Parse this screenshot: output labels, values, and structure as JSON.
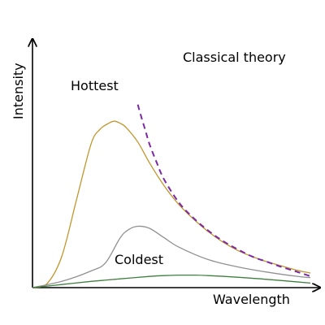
{
  "chart_data": {
    "type": "line",
    "title": "",
    "xlabel": "Wavelength",
    "ylabel": "Intensity",
    "xlim": [
      0,
      10
    ],
    "ylim": [
      0,
      10
    ],
    "grid": false,
    "legend": "none",
    "annotations": [
      "Classical theory",
      "Hottest",
      "Coldest"
    ],
    "series": [
      {
        "name": "Hottest",
        "color": "#c0962d",
        "style": "solid",
        "x": [
          0,
          0.5,
          1.0,
          1.5,
          2.0,
          2.3,
          2.6,
          2.8,
          3.0,
          3.2,
          3.6,
          4.0,
          4.5,
          5.0,
          5.5,
          6.0,
          6.5,
          7.0,
          7.5,
          8.0,
          8.5,
          9.0,
          9.5
        ],
        "y": [
          0,
          0.2,
          1.5,
          4.2,
          6.9,
          7.6,
          7.9,
          8.0,
          7.9,
          7.7,
          7.0,
          6.0,
          4.9,
          4.0,
          3.3,
          2.7,
          2.2,
          1.8,
          1.5,
          1.25,
          1.05,
          0.85,
          0.7
        ]
      },
      {
        "name": "",
        "color": "#919191",
        "style": "solid",
        "x": [
          0,
          1.0,
          2.0,
          2.5,
          3.0,
          3.3,
          3.6,
          4.0,
          4.5,
          5.0,
          6.0,
          7.0,
          8.0,
          9.0,
          9.5
        ],
        "y": [
          0,
          0.3,
          0.8,
          1.2,
          2.4,
          2.8,
          2.95,
          2.85,
          2.4,
          1.95,
          1.35,
          1.0,
          0.75,
          0.55,
          0.48
        ]
      },
      {
        "name": "Coldest",
        "color": "#3f7f3f",
        "style": "solid",
        "x": [
          0,
          1.0,
          2.0,
          3.0,
          4.0,
          4.5,
          5.0,
          5.5,
          6.0,
          7.0,
          8.0,
          9.0,
          9.5
        ],
        "y": [
          0,
          0.15,
          0.3,
          0.42,
          0.54,
          0.58,
          0.6,
          0.6,
          0.58,
          0.5,
          0.4,
          0.28,
          0.22
        ]
      },
      {
        "name": "Classical theory",
        "color": "#7b2aa3",
        "style": "dashed",
        "x": [
          3.6,
          3.7,
          3.85,
          4.0,
          4.25,
          4.5,
          5.0,
          5.5,
          6.0,
          6.5,
          7.0,
          7.5,
          8.0,
          8.5,
          9.0,
          9.5
        ],
        "y": [
          8.8,
          8.3,
          7.6,
          6.9,
          6.0,
          5.2,
          4.1,
          3.35,
          2.75,
          2.25,
          1.85,
          1.5,
          1.25,
          1.0,
          0.78,
          0.55
        ]
      }
    ]
  }
}
